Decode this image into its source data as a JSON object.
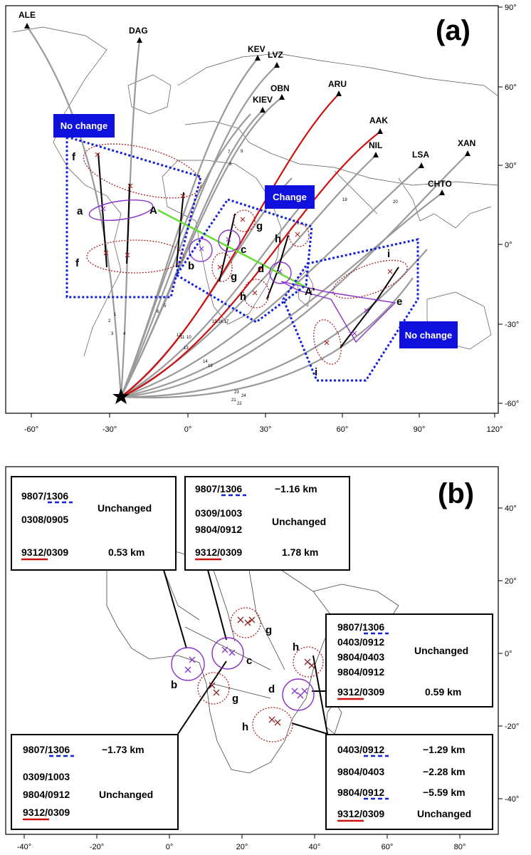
{
  "panel_a": {
    "label": "(a)",
    "lon_ticks": [
      "-60°",
      "-30°",
      "0°",
      "30°",
      "60°",
      "90°",
      "120°"
    ],
    "lat_ticks": [
      "90°",
      "60°",
      "30°",
      "0°",
      "-30°",
      "-60°"
    ],
    "stations": [
      "ALE",
      "DAG",
      "KEV",
      "LVZ",
      "OBN",
      "KIEV",
      "ARU",
      "AAK",
      "NIL",
      "LSA",
      "CHTO",
      "XAN"
    ],
    "path_numbers": [
      "1",
      "2",
      "3",
      "4",
      "5",
      "6",
      "7",
      "8",
      "9",
      "10",
      "11",
      "12",
      "13",
      "14",
      "15,16,17",
      "18",
      "19",
      "20",
      "21",
      "22",
      "23",
      "24"
    ],
    "region_labels": [
      "f",
      "a",
      "f",
      "A",
      "b",
      "c",
      "g",
      "g",
      "h",
      "d",
      "h",
      "A'",
      "i",
      "e",
      "i"
    ],
    "badges": [
      "No change",
      "Change",
      "No change"
    ],
    "colors": {
      "path": "#9a9a9a",
      "changed_path": "#cc1111",
      "profile": "#66dd33",
      "region_circle": "#8833cc",
      "dotted_ellipse": "#aa2222",
      "badge": "#1010dd",
      "box_border": "#1020dd"
    }
  },
  "panel_b": {
    "label": "(b)",
    "lon_ticks": [
      "-40°",
      "-20°",
      "0°",
      "20°",
      "40°",
      "60°",
      "80°"
    ],
    "lat_ticks": [
      "40°",
      "20°",
      "0°",
      "-20°",
      "-40°"
    ],
    "region_labels": [
      "b",
      "c",
      "g",
      "g",
      "h",
      "d",
      "h"
    ],
    "box1": {
      "r1": "9807/1306",
      "r2": "0308/0905",
      "status": "Unchanged",
      "r3": "9312/0309",
      "v3": "0.53 km"
    },
    "box2": {
      "r1": "9807/1306",
      "v1": "−1.16 km",
      "r2": "0309/1003",
      "r3": "9804/0912",
      "status": "Unchanged",
      "r4": "9312/0309",
      "v4": "1.78 km"
    },
    "box3": {
      "r1": "9807/1306",
      "r2": "0403/0912",
      "r3": "9804/0403",
      "r4": "9804/0912",
      "status": "Unchanged",
      "r5": "9312/0309",
      "v5": "0.59 km"
    },
    "box4": {
      "r1": "9807/1306",
      "v1": "−1.73 km",
      "r2": "0309/1003",
      "r3": "9804/0912",
      "status": "Unchanged",
      "r4": "9312/0309"
    },
    "box5": {
      "r1": "0403/0912",
      "v1": "−1.29 km",
      "r2": "9804/0403",
      "v2": "−2.28 km",
      "r3": "9804/0912",
      "v3": "−5.59 km",
      "r4": "9312/0309",
      "v4": "Unchanged"
    }
  }
}
